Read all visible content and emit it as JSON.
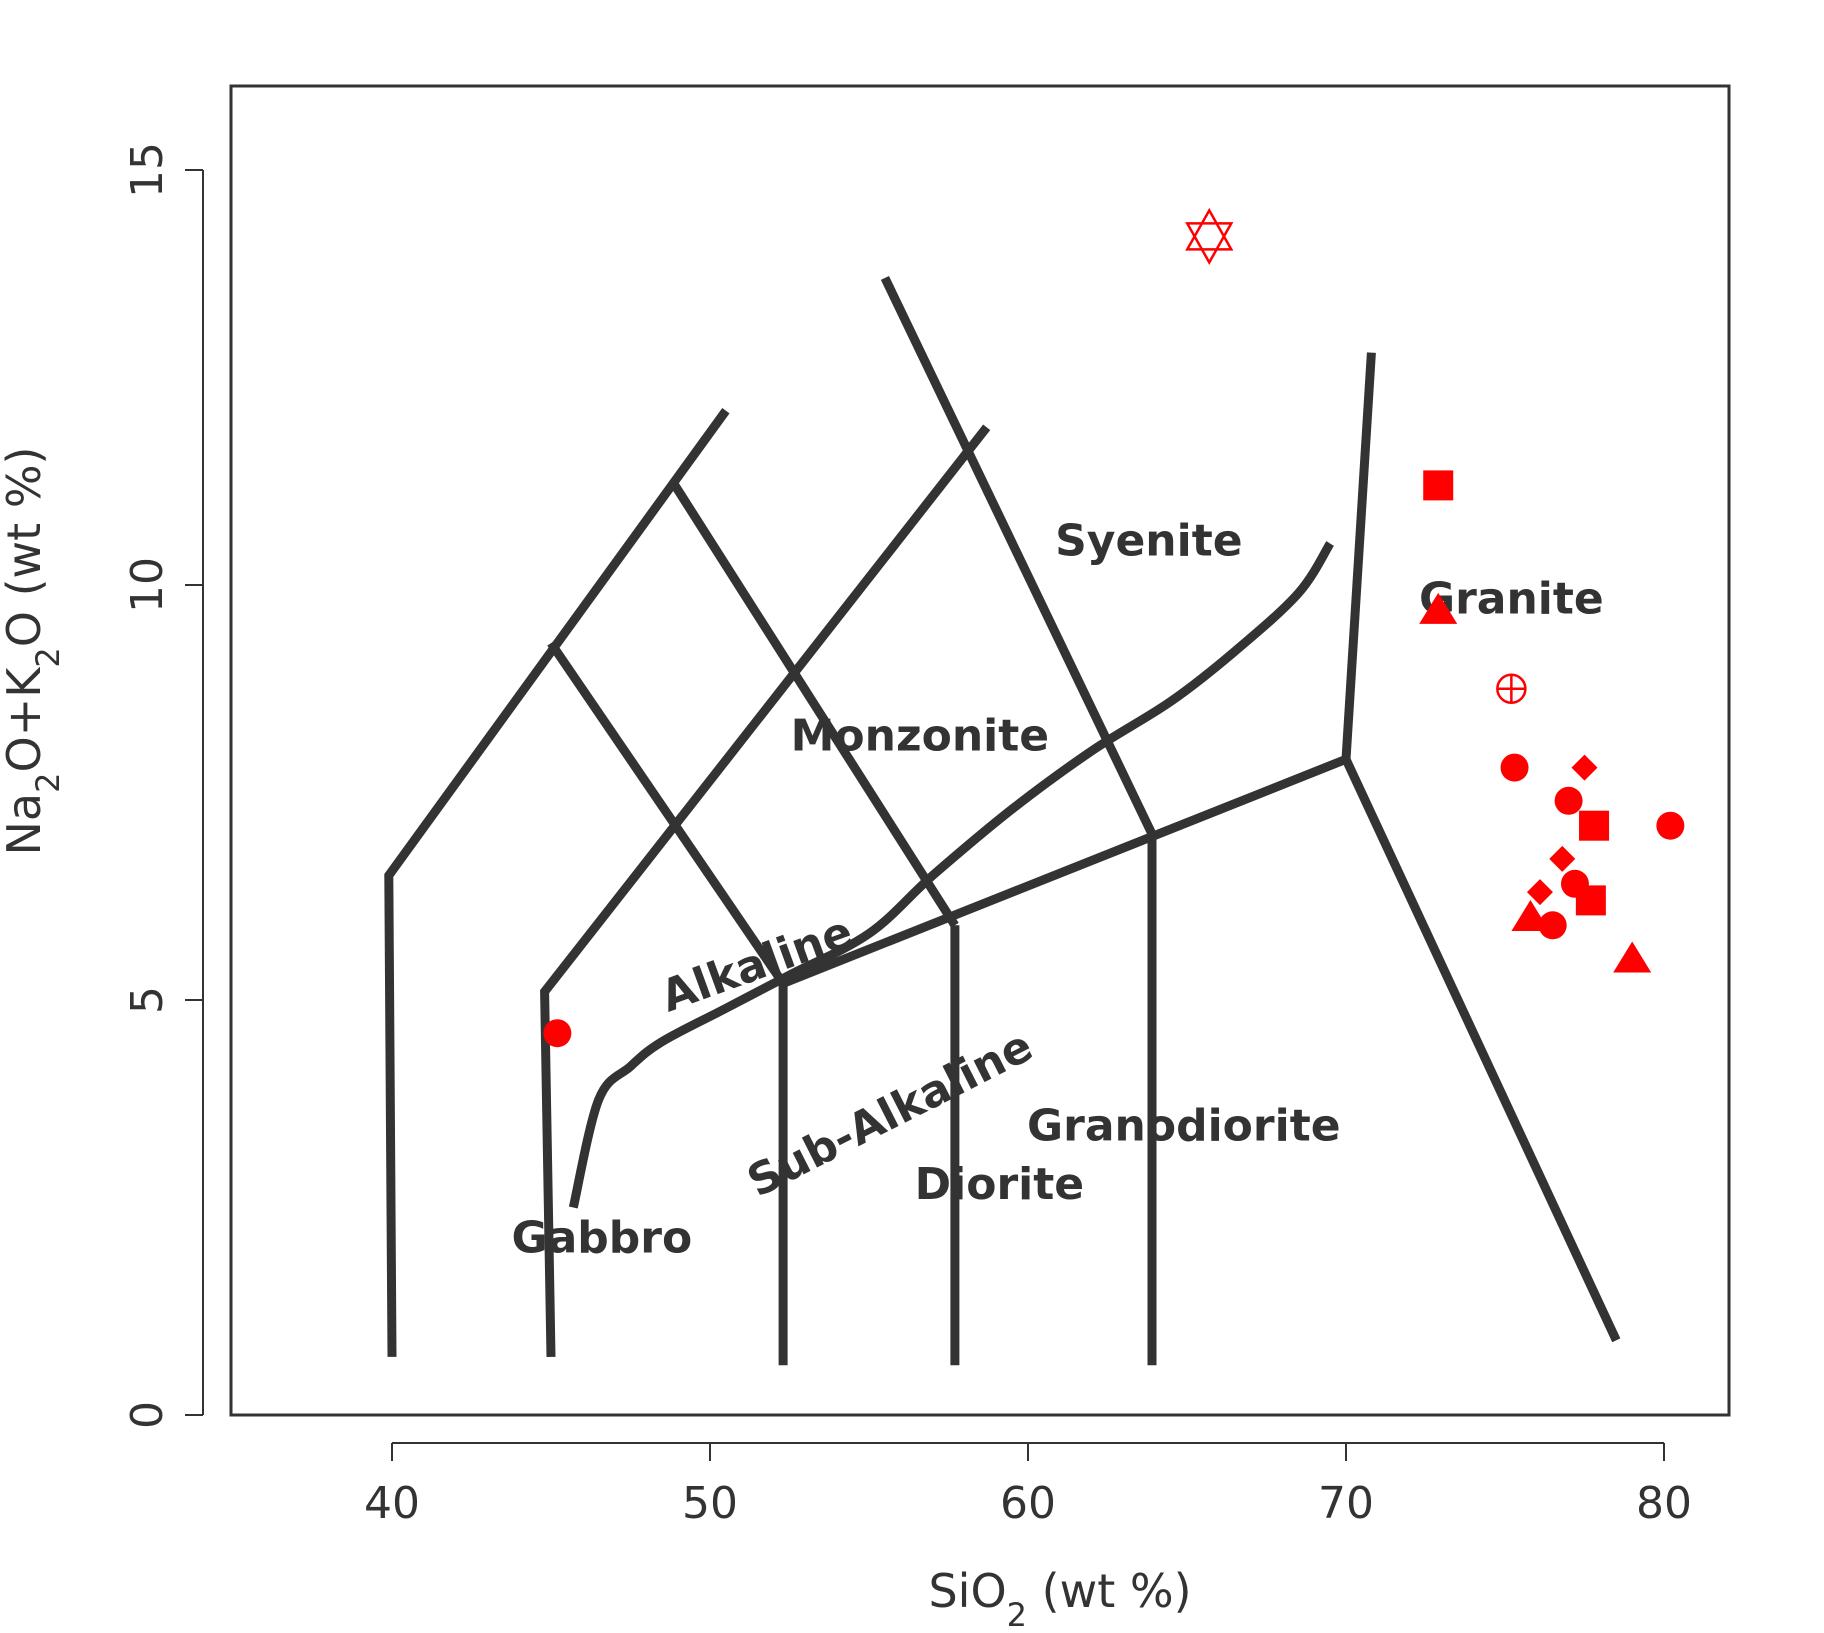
{
  "chart_data": {
    "type": "scatter",
    "title": "",
    "xlabel": "SiO",
    "xlabel_sub": "2",
    "xlabel_tail": " (wt %)",
    "ylabel_parts": [
      {
        "t": "Na",
        "sub": false
      },
      {
        "t": "2",
        "sub": true
      },
      {
        "t": "O+K",
        "sub": false
      },
      {
        "t": "2",
        "sub": true
      },
      {
        "t": "O  (wt %)",
        "sub": false
      }
    ],
    "xlim": [
      35,
      82
    ],
    "ylim": [
      0,
      17.5
    ],
    "xticks": [
      {
        "v": 40,
        "label": "40"
      },
      {
        "v": 50,
        "label": "50"
      },
      {
        "v": 60,
        "label": "60"
      },
      {
        "v": 70,
        "label": "70"
      },
      {
        "v": 80,
        "label": "80"
      }
    ],
    "yticks": [
      {
        "v": 0,
        "label": "0"
      },
      {
        "v": 5,
        "label": "5"
      },
      {
        "v": 10,
        "label": "10"
      },
      {
        "v": 15,
        "label": "15"
      }
    ],
    "grid": false,
    "line_color": "#333333",
    "marker_color": "#ff0000",
    "boundaries": [
      [
        [
          40.0,
          0.7
        ],
        [
          39.9,
          6.5
        ],
        [
          50.5,
          12.1
        ]
      ],
      [
        [
          45.0,
          0.7
        ],
        [
          44.8,
          5.1
        ],
        [
          58.7,
          11.9
        ]
      ],
      [
        [
          45.0,
          9.3
        ],
        [
          52.3,
          5.2
        ]
      ],
      [
        [
          48.9,
          11.2
        ],
        [
          57.7,
          5.9
        ]
      ],
      [
        [
          55.5,
          13.7
        ],
        [
          63.9,
          7.0
        ]
      ],
      [
        [
          52.3,
          0.6
        ],
        [
          52.3,
          5.2
        ]
      ],
      [
        [
          57.7,
          0.6
        ],
        [
          57.7,
          5.9
        ]
      ],
      [
        [
          63.9,
          0.6
        ],
        [
          63.9,
          7.0
        ]
      ],
      [
        [
          52.3,
          5.2
        ],
        [
          70.0,
          7.9
        ],
        [
          70.8,
          12.8
        ]
      ],
      [
        [
          70.0,
          7.9
        ],
        [
          78.5,
          0.9
        ]
      ]
    ],
    "alkaline_divider": [
      [
        45.7,
        2.5
      ],
      [
        46.5,
        3.8
      ],
      [
        47.5,
        4.2
      ],
      [
        48.5,
        4.5
      ],
      [
        50.5,
        4.9
      ],
      [
        52.5,
        5.3
      ],
      [
        55.0,
        5.8
      ],
      [
        57.0,
        6.5
      ],
      [
        59.5,
        7.3
      ],
      [
        62.0,
        8.0
      ],
      [
        64.5,
        8.6
      ],
      [
        66.5,
        9.2
      ],
      [
        68.5,
        9.9
      ],
      [
        69.5,
        10.5
      ]
    ],
    "regions": [
      {
        "label": "Syenite",
        "x": 63.8,
        "y": 10.5,
        "rotate": 0
      },
      {
        "label": "Granite",
        "x": 75.2,
        "y": 9.8,
        "rotate": 0
      },
      {
        "label": "Monzonite",
        "x": 56.6,
        "y": 8.15,
        "rotate": 0
      },
      {
        "label": "Alkaline",
        "x": 51.5,
        "y": 5.4,
        "rotate": -20
      },
      {
        "label": "Sub-Alkaline",
        "x": 55.7,
        "y": 3.6,
        "rotate": -27
      },
      {
        "label": "Granodiorite",
        "x": 64.9,
        "y": 3.45,
        "rotate": 0
      },
      {
        "label": "Diorite",
        "x": 59.1,
        "y": 2.75,
        "rotate": 0
      },
      {
        "label": "Gabbro",
        "x": 46.6,
        "y": 2.1,
        "rotate": 0
      }
    ],
    "series": [
      {
        "marker": "circle",
        "points": [
          [
            45.2,
            4.6
          ],
          [
            75.3,
            7.8
          ],
          [
            77.0,
            7.4
          ],
          [
            80.2,
            7.1
          ],
          [
            77.2,
            6.4
          ],
          [
            76.5,
            5.9
          ]
        ]
      },
      {
        "marker": "square",
        "points": [
          [
            72.9,
            11.2
          ],
          [
            77.8,
            7.1
          ],
          [
            77.7,
            6.2
          ]
        ]
      },
      {
        "marker": "triangle",
        "points": [
          [
            72.9,
            9.7
          ],
          [
            75.8,
            6.0
          ],
          [
            79.0,
            5.5
          ]
        ]
      },
      {
        "marker": "diamond",
        "points": [
          [
            77.5,
            7.8
          ],
          [
            76.8,
            6.7
          ],
          [
            76.1,
            6.3
          ]
        ]
      },
      {
        "marker": "circle-plus",
        "points": [
          [
            75.2,
            8.75
          ]
        ]
      },
      {
        "marker": "star-of-david",
        "points": [
          [
            65.7,
            14.2
          ]
        ]
      }
    ]
  }
}
